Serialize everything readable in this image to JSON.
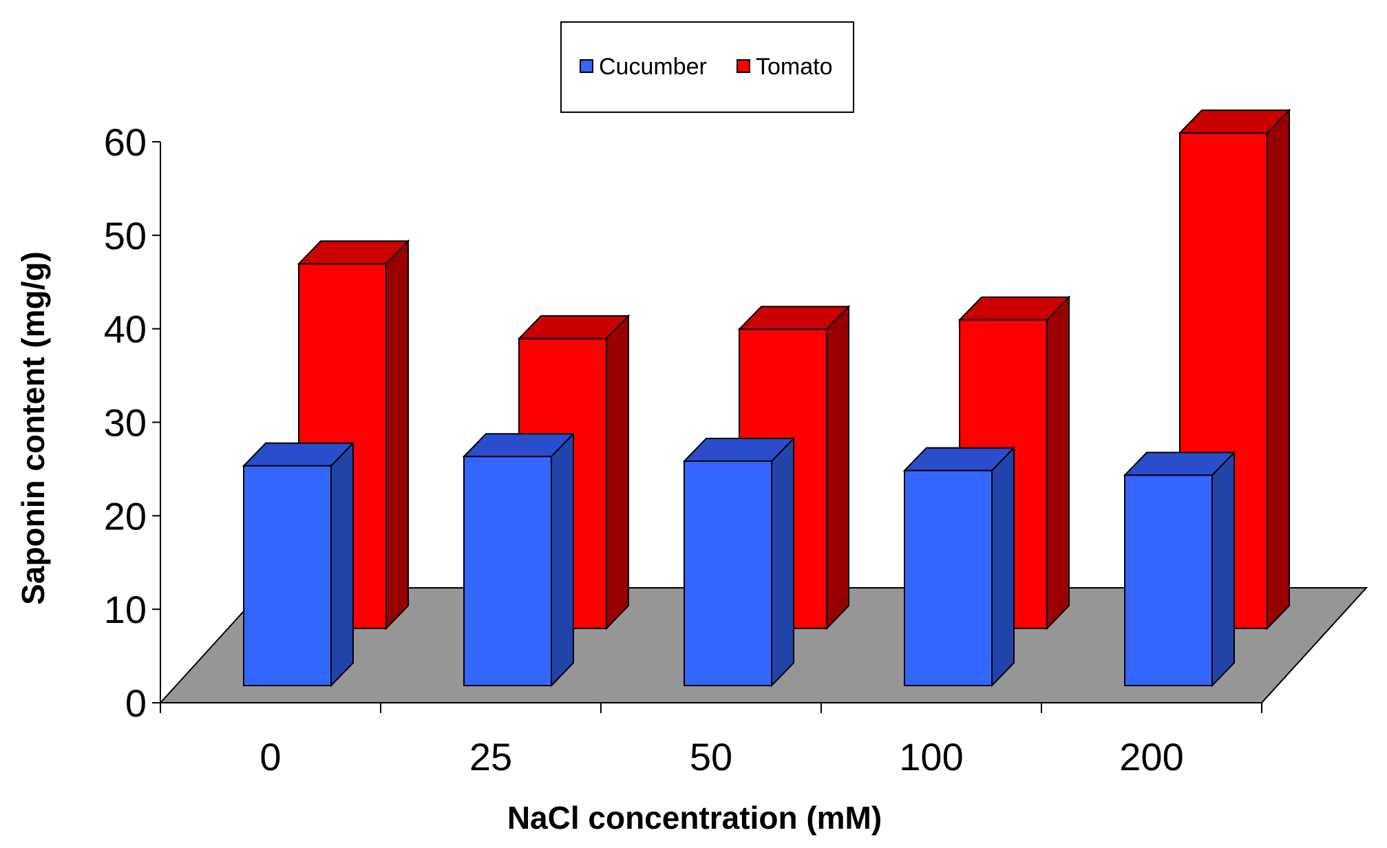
{
  "chart_data": {
    "type": "bar",
    "title": "",
    "xlabel": "NaCl concentration (mM)",
    "ylabel": "Saponin content (mg/g)",
    "categories": [
      "0",
      "25",
      "50",
      "100",
      "200"
    ],
    "series": [
      {
        "name": "Cucumber",
        "values": [
          23.5,
          24.5,
          24,
          23,
          22.5
        ],
        "color": "#3366ff",
        "side_color": "#2244aa",
        "top_color": "#2a4dcc"
      },
      {
        "name": "Tomato",
        "values": [
          39,
          31,
          32,
          33,
          53
        ],
        "color": "#ff0000",
        "side_color": "#990000",
        "top_color": "#cc0000"
      }
    ],
    "ylim": [
      0,
      60
    ],
    "yticks": [
      0,
      10,
      20,
      30,
      40,
      50,
      60
    ],
    "legend": {
      "position": "top-center"
    },
    "grid": false,
    "floor_color": "#969696"
  }
}
